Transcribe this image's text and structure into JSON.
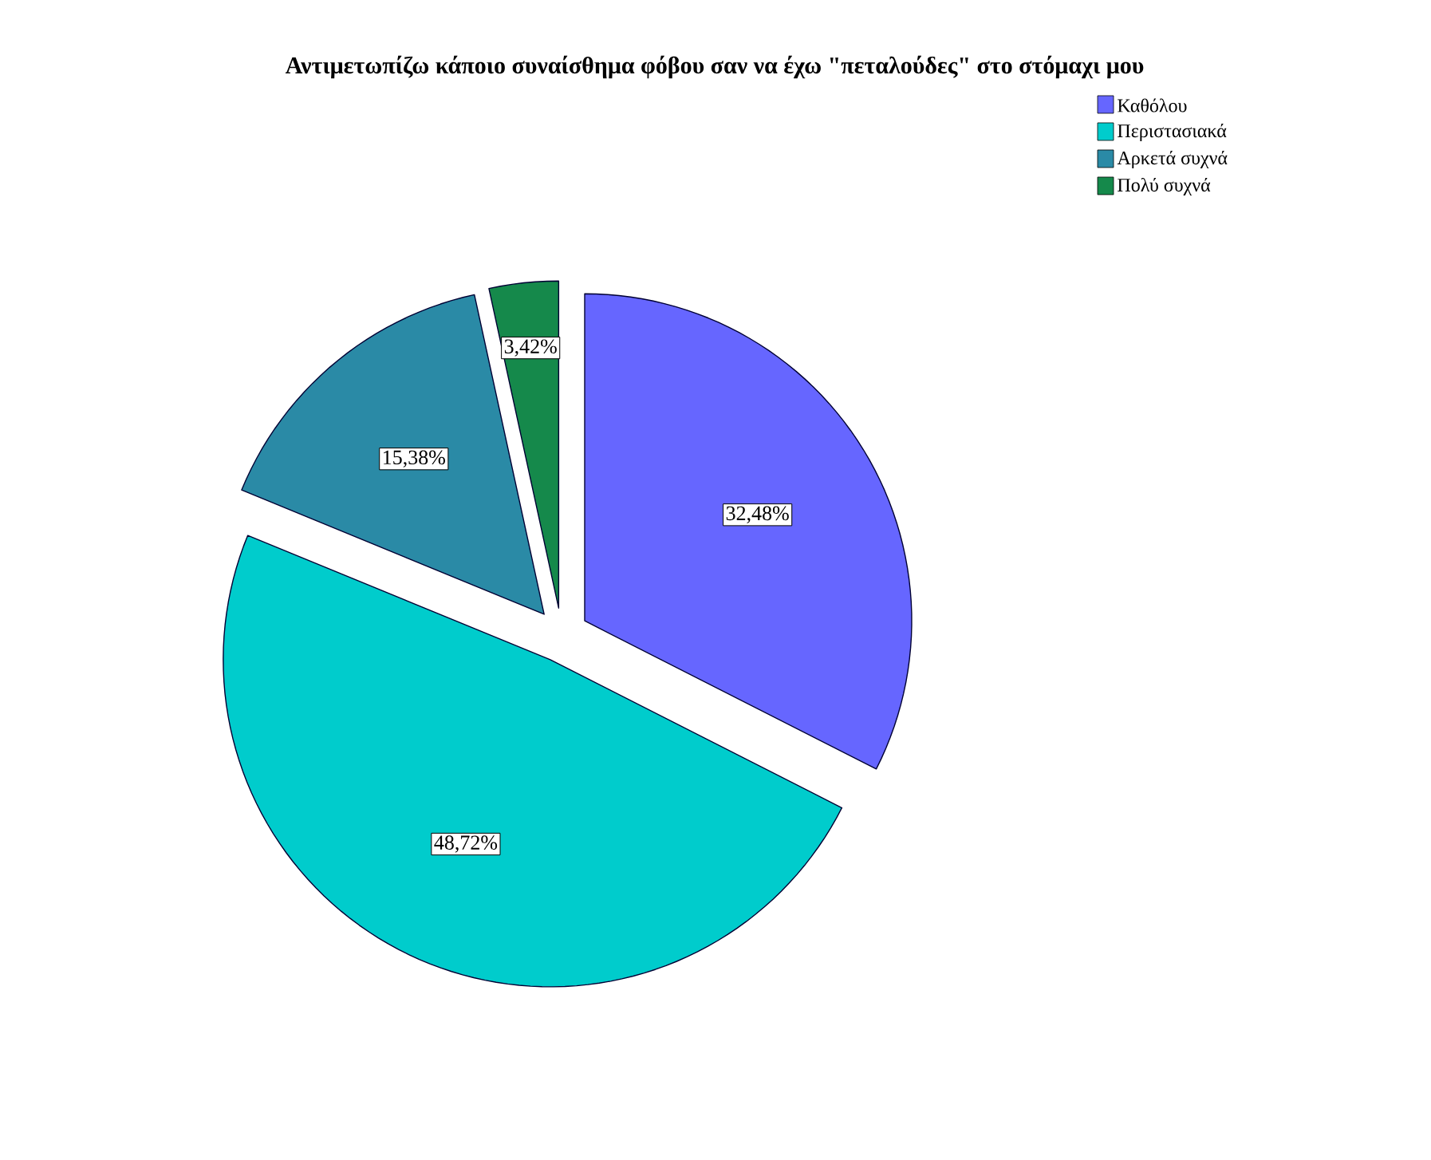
{
  "chart_data": {
    "type": "pie",
    "title": "Αντιμετωπίζω κάποιο συναίσθημα φόβου σαν να έχω \"πεταλούδες\" στο στόμαχι μου",
    "categories": [
      "Καθόλου",
      "Περιστασιακά",
      "Αρκετά συχνά",
      "Πολύ συχνά"
    ],
    "values": [
      32.48,
      48.72,
      15.38,
      3.42
    ],
    "colors": [
      "#6666ff",
      "#00cccc",
      "#2a8aa6",
      "#15894b"
    ],
    "value_labels": [
      "32,48%",
      "48,72%",
      "15,38%",
      "3,42%"
    ],
    "legend": "top right"
  }
}
